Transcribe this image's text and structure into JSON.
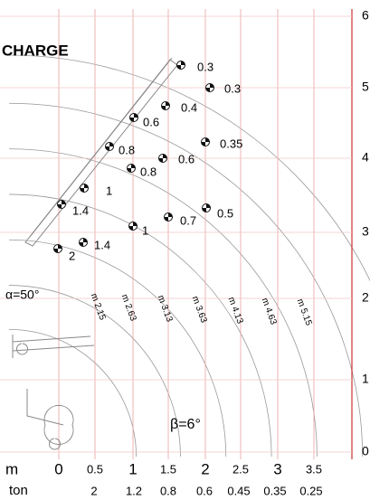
{
  "title": "CHARGE",
  "height_labels": [
    "6",
    "5",
    "4",
    "3",
    "2",
    "1",
    "0"
  ],
  "m_row": {
    "label": "m",
    "values": [
      "0",
      "0.5",
      "1",
      "1.5",
      "2",
      "2.5",
      "3",
      "3.5"
    ]
  },
  "ton_row": {
    "label": "ton",
    "values": [
      "2",
      "1.2",
      "0.8",
      "0.6",
      "0.45",
      "0.35",
      "0.25"
    ]
  },
  "radius_labels": [
    "m 2.15",
    "m 2.63",
    "m 3.13",
    "m 3.63",
    "m 4.13",
    "m 4.63",
    "m 5.15"
  ],
  "load_points": [
    "0.3",
    "0.3",
    "0.4",
    "0.6",
    "0.35",
    "0.8",
    "0.6",
    "0.8",
    "1",
    "1.4",
    "0.7",
    "0.5",
    "1",
    "1.4",
    "2"
  ],
  "alpha": "α=50°",
  "beta": "β=6°"
}
